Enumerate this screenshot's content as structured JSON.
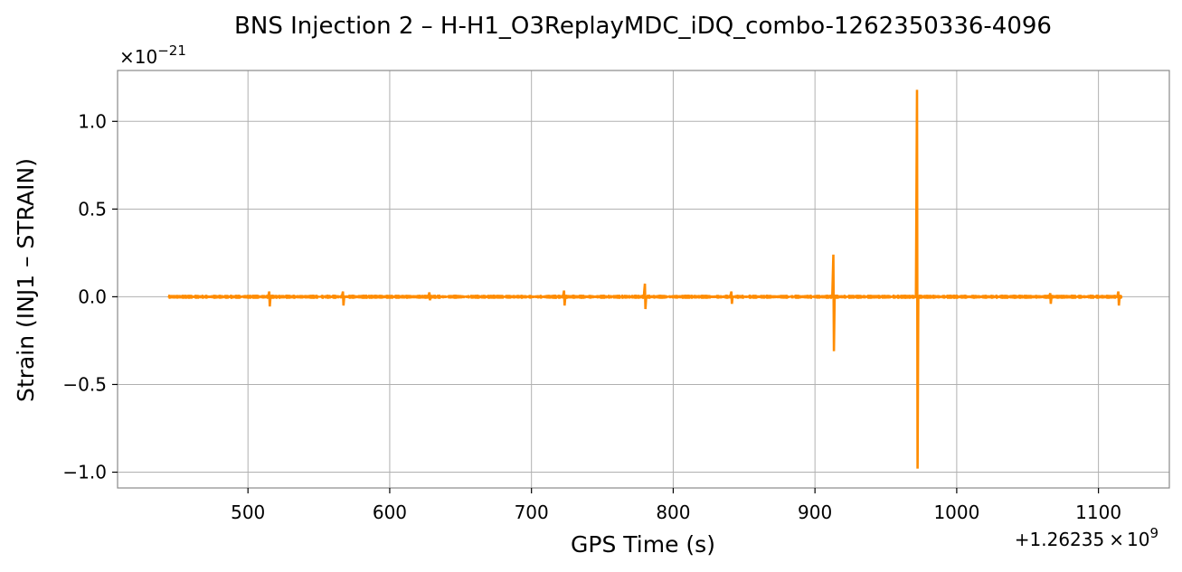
{
  "chart_data": {
    "type": "line",
    "title": "BNS Injection 2 – H-H1_O3ReplayMDC_iDQ_combo-1262350336-4096",
    "xlabel": "GPS Time (s)",
    "ylabel": "Strain (INJ1 – STRAIN)",
    "x_offset_label": "+1.26235",
    "x_offset_times": "×",
    "x_offset_base": "10",
    "x_offset_exp": "9",
    "y_multiplier_prefix": "×10",
    "y_multiplier_exp": "−21",
    "xlim": [
      408,
      1150
    ],
    "ylim": [
      -1.09,
      1.29
    ],
    "xticks": [
      500,
      600,
      700,
      800,
      900,
      1000,
      1100
    ],
    "xtick_labels": [
      "500",
      "600",
      "700",
      "800",
      "900",
      "1000",
      "1100"
    ],
    "yticks": [
      -1.0,
      -0.5,
      0.0,
      0.5,
      1.0
    ],
    "ytick_labels": [
      "−1.0",
      "−0.5",
      "0.0",
      "0.5",
      "1.0"
    ],
    "grid": true,
    "line_color": "#ff8c00",
    "series": [
      {
        "x_range": [
          444,
          1116
        ],
        "baseline_amplitude": 0.008,
        "spikes": [
          {
            "x": 515,
            "min": -0.055,
            "max": 0.03
          },
          {
            "x": 567,
            "min": -0.05,
            "max": 0.03
          },
          {
            "x": 628,
            "min": -0.02,
            "max": 0.025
          },
          {
            "x": 723,
            "min": -0.05,
            "max": 0.035
          },
          {
            "x": 780,
            "min": -0.07,
            "max": 0.075
          },
          {
            "x": 841,
            "min": -0.04,
            "max": 0.03
          },
          {
            "x": 913,
            "min": -0.31,
            "max": 0.24
          },
          {
            "x": 972,
            "min": -0.98,
            "max": 1.18
          },
          {
            "x": 1066,
            "min": -0.04,
            "max": 0.02
          },
          {
            "x": 1114,
            "min": -0.05,
            "max": 0.03
          }
        ]
      }
    ]
  }
}
